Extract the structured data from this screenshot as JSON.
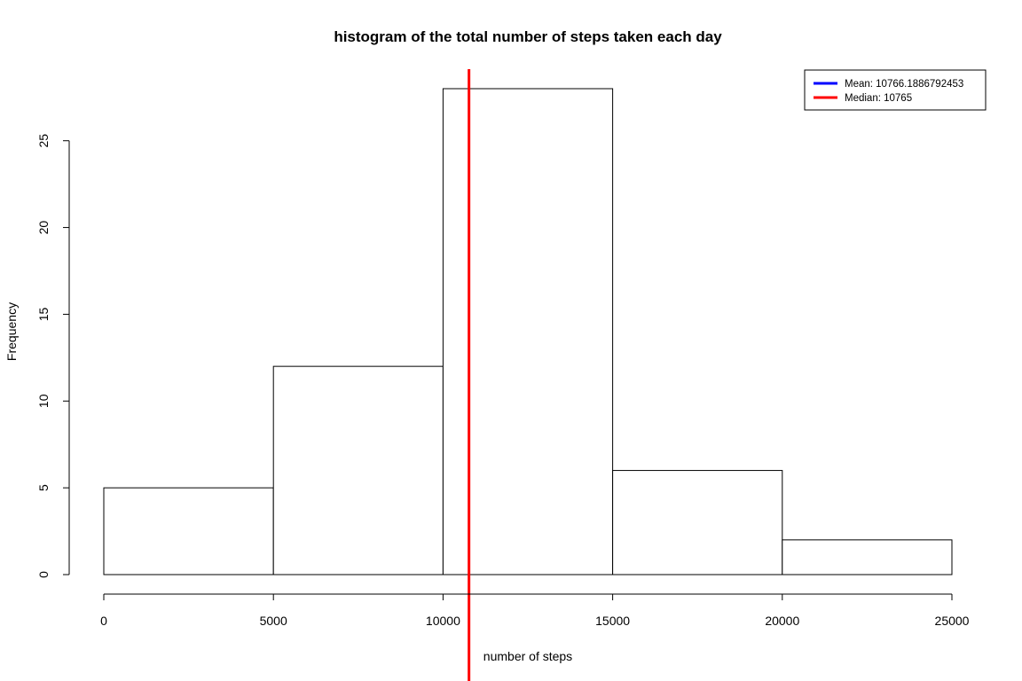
{
  "chart_data": {
    "type": "bar",
    "title": "histogram of the total number of steps taken each day",
    "xlabel": "number of steps",
    "ylabel": "Frequency",
    "bins": [
      {
        "from": 0,
        "to": 5000,
        "count": 5
      },
      {
        "from": 5000,
        "to": 10000,
        "count": 12
      },
      {
        "from": 10000,
        "to": 15000,
        "count": 28
      },
      {
        "from": 15000,
        "to": 20000,
        "count": 6
      },
      {
        "from": 20000,
        "to": 25000,
        "count": 2
      }
    ],
    "xlim": [
      0,
      25000
    ],
    "ylim": [
      0,
      28
    ],
    "x_ticks": [
      0,
      5000,
      10000,
      15000,
      20000,
      25000
    ],
    "y_ticks": [
      0,
      5,
      10,
      15,
      20,
      25
    ],
    "grid": false,
    "bar_fill": "#ffffff",
    "bar_stroke": "#000000",
    "reference_lines": [
      {
        "name": "mean",
        "value": 10766.1886792453,
        "color": "#0000ff",
        "visible": false
      },
      {
        "name": "median",
        "value": 10765,
        "color": "#ff0000",
        "visible": true
      }
    ],
    "legend": {
      "placement": "top-right",
      "entries": [
        {
          "label": "Mean:  10766.1886792453",
          "color": "#0000ff"
        },
        {
          "label": "Median:  10765",
          "color": "#ff0000"
        }
      ]
    }
  }
}
